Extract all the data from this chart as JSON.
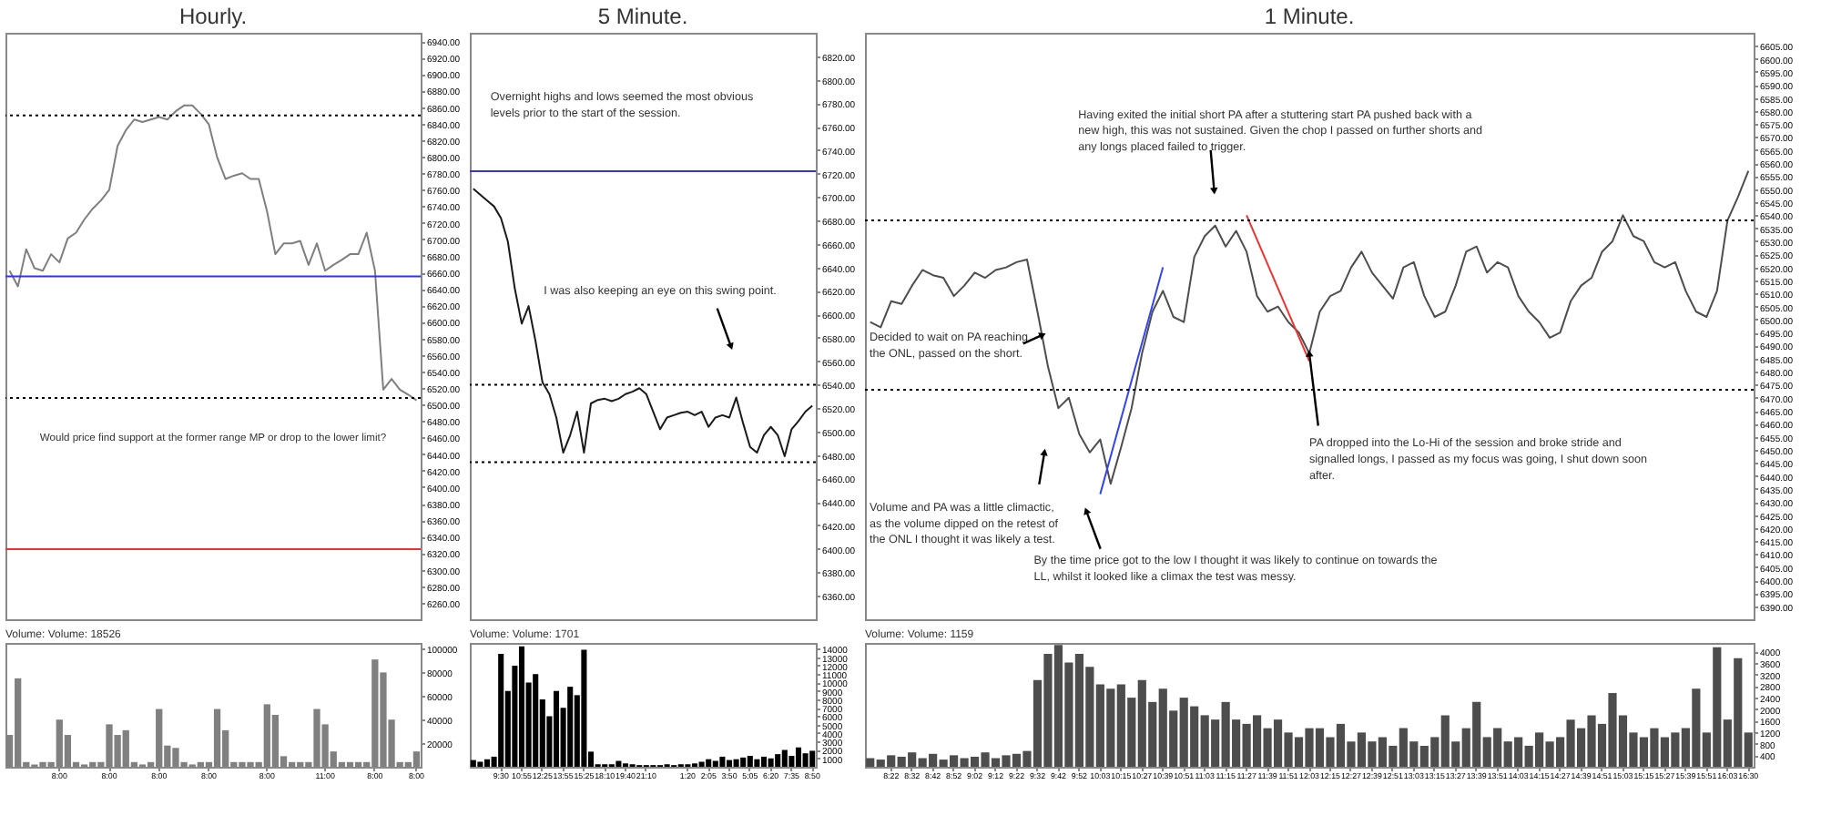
{
  "chart_data": [
    {
      "type": "line",
      "title": "Hourly.",
      "tick_labels": "y",
      "color": "#7f7f7f",
      "categories": [
        null,
        null,
        null,
        null,
        null,
        null,
        "8:00",
        null,
        null,
        null,
        null,
        null,
        "8:00",
        null,
        null,
        null,
        null,
        null,
        "8:00",
        null,
        null,
        null,
        null,
        null,
        "8:00",
        null,
        null,
        null,
        null,
        null,
        null,
        "8:00",
        null,
        null,
        null,
        null,
        null,
        null,
        "11:00",
        null,
        null,
        null,
        null,
        null,
        "8:00",
        null,
        null,
        null,
        null,
        "8:00"
      ],
      "values": [
        6662,
        6643,
        6688,
        6665,
        6662,
        6682,
        6672,
        6701,
        6708,
        6724,
        6737,
        6747,
        6760,
        6813,
        6832,
        6845,
        6842,
        6845,
        6848,
        6845,
        6855,
        6862,
        6862,
        6852,
        6839,
        6799,
        6773,
        6777,
        6780,
        6773,
        6773,
        6734,
        6682,
        6695,
        6695,
        6698,
        6669,
        6695,
        6662,
        6669,
        6675,
        6682,
        6682,
        6708,
        6662,
        6518,
        6531,
        6518,
        6512,
        6505
      ],
      "ylim": [
        6240,
        6950
      ],
      "yticks": [
        {
          "value": 6260,
          "label": "6260.00"
        },
        {
          "value": 6280,
          "label": "6280.00"
        },
        {
          "value": 6300,
          "label": "6300.00"
        },
        {
          "value": 6320,
          "label": "6320.00"
        },
        {
          "value": 6340,
          "label": "6340.00"
        },
        {
          "value": 6360,
          "label": "6360.00"
        },
        {
          "value": 6380,
          "label": "6380.00"
        },
        {
          "value": 6400,
          "label": "6400.00"
        },
        {
          "value": 6420,
          "label": "6420.00"
        },
        {
          "value": 6440,
          "label": "6440.00"
        },
        {
          "value": 6460,
          "label": "6460.00"
        },
        {
          "value": 6480,
          "label": "6480.00"
        },
        {
          "value": 6500,
          "label": "6500.00"
        },
        {
          "value": 6520,
          "label": "6520.00"
        },
        {
          "value": 6540,
          "label": "6540.00"
        },
        {
          "value": 6560,
          "label": "6560.00"
        },
        {
          "value": 6580,
          "label": "6580.00"
        },
        {
          "value": 6600,
          "label": "6600.00"
        },
        {
          "value": 6620,
          "label": "6620.00"
        },
        {
          "value": 6640,
          "label": "6640.00"
        },
        {
          "value": 6660,
          "label": "6660.00"
        },
        {
          "value": 6680,
          "label": "6680.00"
        },
        {
          "value": 6700,
          "label": "6700.00"
        },
        {
          "value": 6720,
          "label": "6720.00"
        },
        {
          "value": 6740,
          "label": "6740.00"
        },
        {
          "value": 6760,
          "label": "6760.00"
        },
        {
          "value": 6780,
          "label": "6780.00"
        },
        {
          "value": 6800,
          "label": "6800.00"
        },
        {
          "value": 6820,
          "label": "6820.00"
        },
        {
          "value": 6840,
          "label": "6840.00"
        },
        {
          "value": 6860,
          "label": "6860.00"
        },
        {
          "value": 6880,
          "label": "6880.00"
        },
        {
          "value": 6900,
          "label": "6900.00"
        },
        {
          "value": 6920,
          "label": "6920.00"
        },
        {
          "value": 6940,
          "label": "6940.00"
        }
      ],
      "ref_lines": [
        {
          "axis": "y",
          "value": 6850,
          "color": "#000000",
          "line_style": "dotted"
        },
        {
          "axis": "y",
          "value": 6655,
          "color": "#3333ee",
          "line_style": "solid"
        },
        {
          "axis": "y",
          "value": 6508,
          "color": "#000000",
          "line_style": "dotted"
        },
        {
          "axis": "y",
          "value": 6325,
          "color": "#ee3333",
          "line_style": "solid"
        }
      ],
      "annotations": [
        "Would price find support at the former range MP or drop to the lower limit?"
      ]
    },
    {
      "type": "bar",
      "title": "Volume: Volume: 18526",
      "color": "#808080",
      "categories": [
        null,
        null,
        null,
        null,
        null,
        null,
        "8:00",
        null,
        null,
        null,
        null,
        null,
        "8:00",
        null,
        null,
        null,
        null,
        null,
        "8:00",
        null,
        null,
        null,
        null,
        null,
        "8:00",
        null,
        null,
        null,
        null,
        null,
        null,
        "8:00",
        null,
        null,
        null,
        null,
        null,
        null,
        "11:00",
        null,
        null,
        null,
        null,
        null,
        "8:00",
        null,
        null,
        null,
        null,
        "8:00"
      ],
      "values": [
        27000,
        75000,
        4000,
        2000,
        4000,
        4000,
        40000,
        27000,
        4000,
        2000,
        4000,
        4000,
        36000,
        27000,
        31000,
        4000,
        2000,
        4000,
        49000,
        18000,
        16000,
        4000,
        2000,
        4000,
        4000,
        49000,
        31000,
        4000,
        4000,
        4000,
        4000,
        53000,
        44000,
        9000,
        4000,
        4000,
        4000,
        49000,
        36000,
        13000,
        4000,
        4000,
        4000,
        4000,
        91000,
        80000,
        40000,
        4000,
        4000,
        13000
      ],
      "ylim": [
        0,
        105000
      ],
      "yticks": [
        20000,
        40000,
        60000,
        80000,
        100000
      ]
    },
    {
      "type": "line",
      "title": "5 Minute.",
      "tick_labels": "y",
      "color": "#1a1a1a",
      "categories": [
        null,
        null,
        null,
        null,
        "9:30",
        null,
        null,
        "10:55",
        null,
        null,
        "12:25",
        null,
        null,
        "13:55",
        null,
        null,
        "15:25",
        null,
        null,
        "18:10",
        null,
        null,
        "19:40",
        null,
        null,
        "21:10",
        null,
        null,
        null,
        null,
        null,
        "1:20",
        null,
        null,
        "2:05",
        null,
        null,
        "3:50",
        null,
        null,
        "5:05",
        null,
        null,
        "6:20",
        null,
        null,
        "7:35",
        null,
        null,
        "8:50"
      ],
      "values": [
        6707,
        6702,
        6697,
        6692,
        6682,
        6662,
        6622,
        6592,
        6607,
        6577,
        6542,
        6532,
        6512,
        6482,
        6497,
        6517,
        6482,
        6524,
        6527,
        6528,
        6526,
        6528,
        6532,
        6534,
        6537,
        6532,
        6517,
        6502,
        6512,
        6514,
        6516,
        6517,
        6514,
        6517,
        6504,
        6512,
        6514,
        6512,
        6529,
        6507,
        6487,
        6482,
        6497,
        6504,
        6497,
        6479,
        6502,
        6509,
        6517,
        6522
      ],
      "ylim": [
        6340,
        6840
      ],
      "yticks": [
        {
          "value": 6360,
          "label": "6360.00"
        },
        {
          "value": 6380,
          "label": "6380.00"
        },
        {
          "value": 6400,
          "label": "6400.00"
        },
        {
          "value": 6420,
          "label": "6420.00"
        },
        {
          "value": 6440,
          "label": "6440.00"
        },
        {
          "value": 6460,
          "label": "6460.00"
        },
        {
          "value": 6480,
          "label": "6480.00"
        },
        {
          "value": 6500,
          "label": "6500.00"
        },
        {
          "value": 6520,
          "label": "6520.00"
        },
        {
          "value": 6540,
          "label": "6540.00"
        },
        {
          "value": 6560,
          "label": "6560.00"
        },
        {
          "value": 6580,
          "label": "6580.00"
        },
        {
          "value": 6600,
          "label": "6600.00"
        },
        {
          "value": 6620,
          "label": "6620.00"
        },
        {
          "value": 6640,
          "label": "6640.00"
        },
        {
          "value": 6660,
          "label": "6660.00"
        },
        {
          "value": 6680,
          "label": "6680.00"
        },
        {
          "value": 6700,
          "label": "6700.00"
        },
        {
          "value": 6720,
          "label": "6720.00"
        },
        {
          "value": 6740,
          "label": "6740.00"
        },
        {
          "value": 6760,
          "label": "6760.00"
        },
        {
          "value": 6780,
          "label": "6780.00"
        },
        {
          "value": 6800,
          "label": "6800.00"
        },
        {
          "value": 6820,
          "label": "6820.00"
        }
      ],
      "ref_lines": [
        {
          "axis": "y",
          "value": 6722,
          "color": "#3333ee",
          "line_style": "solid"
        },
        {
          "axis": "y",
          "value": 6540,
          "color": "#000000",
          "line_style": "dotted"
        },
        {
          "axis": "y",
          "value": 6474,
          "color": "#000000",
          "line_style": "dotted"
        }
      ],
      "annotations": [
        "Overnight highs and lows seemed the most obvious levels prior to the start of the session.",
        "I was also keeping an eye on this swing point."
      ]
    },
    {
      "type": "bar",
      "title": "Volume: Volume: 1701",
      "color": "#000000",
      "categories": [
        null,
        null,
        null,
        null,
        "9:30",
        null,
        null,
        "10:55",
        null,
        null,
        "12:25",
        null,
        null,
        "13:55",
        null,
        null,
        "15:25",
        null,
        null,
        "18:10",
        null,
        null,
        "19:40",
        null,
        null,
        "21:10",
        null,
        null,
        null,
        null,
        null,
        "1:20",
        null,
        null,
        "2:05",
        null,
        null,
        "3:50",
        null,
        null,
        "5:05",
        null,
        null,
        "6:20",
        null,
        null,
        "7:35",
        null,
        null,
        "8:50"
      ],
      "values": [
        800,
        600,
        900,
        1200,
        13400,
        9000,
        12000,
        14300,
        10000,
        11000,
        8000,
        6000,
        9000,
        7000,
        9500,
        8500,
        13900,
        1800,
        300,
        300,
        300,
        700,
        400,
        300,
        200,
        200,
        200,
        200,
        300,
        200,
        300,
        300,
        400,
        600,
        900,
        700,
        1200,
        800,
        900,
        1100,
        1300,
        900,
        1200,
        1000,
        1500,
        2000,
        1300,
        2300,
        1600,
        1900
      ],
      "ylim": [
        0,
        14700
      ],
      "yticks": [
        1000,
        2000,
        3000,
        4000,
        5000,
        6000,
        7000,
        8000,
        9000,
        10000,
        11000,
        12000,
        13000,
        14000
      ]
    },
    {
      "type": "line",
      "title": "1 Minute.",
      "tick_labels": "y",
      "categories": [
        null,
        null,
        "8:22",
        null,
        "8:32",
        null,
        "8:42",
        null,
        "8:52",
        null,
        "9:02",
        null,
        "9:12",
        null,
        "9:22",
        null,
        "9:32",
        null,
        "9:42",
        null,
        "9:52",
        null,
        "10:03",
        null,
        "10:15",
        null,
        "10:27",
        null,
        "10:39",
        null,
        "10:51",
        null,
        "11:03",
        null,
        "11:15",
        null,
        "11:27",
        null,
        "11:39",
        null,
        "11:51",
        null,
        "12:03",
        null,
        "12:15",
        null,
        "12:27",
        null,
        "12:39",
        null,
        "12:51",
        null,
        "13:03",
        null,
        "13:15",
        null,
        "13:27",
        null,
        "13:39",
        null,
        "13:51",
        null,
        "14:03",
        null,
        "14:15",
        null,
        "14:27",
        null,
        "14:39",
        null,
        "14:51",
        null,
        "15:03",
        null,
        "15:15",
        null,
        "15:27",
        null,
        "15:39",
        null,
        "15:51",
        null,
        "16:03",
        null,
        "16:30"
      ],
      "series": [
        {
          "color": "#4d4d4d",
          "values": [
            6499,
            6497,
            6507,
            6506,
            6513,
            6519,
            6517,
            6516,
            6509,
            6513,
            6518,
            6516,
            6519,
            6520,
            6522,
            6523,
            6503,
            6482,
            6466,
            6470,
            6456,
            6449,
            6454,
            6437,
            6451,
            6466,
            6487,
            6503,
            6511,
            6501,
            6499,
            6524,
            6532,
            6536,
            6528,
            6534,
            6526,
            6509,
            6503,
            6505,
            6499,
            6495,
            6487,
            6503,
            6509,
            6511,
            6520,
            6526,
            6518,
            6513,
            6508,
            6520,
            6522,
            6509,
            6501,
            6503,
            6513,
            6526,
            6528,
            6518,
            6522,
            6520,
            6509,
            6503,
            6499,
            6493,
            6495,
            6507,
            6513,
            6516,
            6526,
            6530,
            6540,
            6532,
            6530,
            6522,
            6520,
            6522,
            6511,
            6503,
            6501,
            6511,
            6538,
            6547,
            6557
          ]
        },
        {
          "type": "line",
          "color": "#3344ee",
          "x": [
            "10:03",
            "10:39"
          ],
          "values": [
            6433,
            6520
          ]
        },
        {
          "type": "line",
          "color": "#ee3333",
          "x": [
            "11:27",
            "12:03"
          ],
          "values": [
            6540,
            6484
          ]
        }
      ],
      "ylim": [
        6385,
        6610
      ],
      "yticks": [
        {
          "value": 6390,
          "label": "6390.00"
        },
        {
          "value": 6395,
          "label": "6395.00"
        },
        {
          "value": 6400,
          "label": "6400.00"
        },
        {
          "value": 6405,
          "label": "6405.00"
        },
        {
          "value": 6410,
          "label": "6410.00"
        },
        {
          "value": 6415,
          "label": "6415.00"
        },
        {
          "value": 6420,
          "label": "6420.00"
        },
        {
          "value": 6425,
          "label": "6425.00"
        },
        {
          "value": 6430,
          "label": "6430.00"
        },
        {
          "value": 6435,
          "label": "6435.00"
        },
        {
          "value": 6440,
          "label": "6440.00"
        },
        {
          "value": 6445,
          "label": "6445.00"
        },
        {
          "value": 6450,
          "label": "6450.00"
        },
        {
          "value": 6455,
          "label": "6455.00"
        },
        {
          "value": 6460,
          "label": "6460.00"
        },
        {
          "value": 6465,
          "label": "6465.00"
        },
        {
          "value": 6470,
          "label": "6470.00"
        },
        {
          "value": 6475,
          "label": "6475.00"
        },
        {
          "value": 6480,
          "label": "6480.00"
        },
        {
          "value": 6485,
          "label": "6485.00"
        },
        {
          "value": 6490,
          "label": "6490.00"
        },
        {
          "value": 6495,
          "label": "6495.00"
        },
        {
          "value": 6500,
          "label": "6500.00"
        },
        {
          "value": 6505,
          "label": "6505.00"
        },
        {
          "value": 6510,
          "label": "6510.00"
        },
        {
          "value": 6515,
          "label": "6515.00"
        },
        {
          "value": 6520,
          "label": "6520.00"
        },
        {
          "value": 6525,
          "label": "6525.00"
        },
        {
          "value": 6530,
          "label": "6530.00"
        },
        {
          "value": 6535,
          "label": "6535.00"
        },
        {
          "value": 6540,
          "label": "6540.00"
        },
        {
          "value": 6545,
          "label": "6545.00"
        },
        {
          "value": 6550,
          "label": "6550.00"
        },
        {
          "value": 6555,
          "label": "6555.00"
        },
        {
          "value": 6560,
          "label": "6560.00"
        },
        {
          "value": 6565,
          "label": "6565.00"
        },
        {
          "value": 6570,
          "label": "6570.00"
        },
        {
          "value": 6575,
          "label": "6575.00"
        },
        {
          "value": 6580,
          "label": "6580.00"
        },
        {
          "value": 6585,
          "label": "6585.00"
        },
        {
          "value": 6590,
          "label": "6590.00"
        },
        {
          "value": 6595,
          "label": "6595.00"
        },
        {
          "value": 6600,
          "label": "6600.00"
        },
        {
          "value": 6605,
          "label": "6605.00"
        }
      ],
      "ref_lines": [
        {
          "axis": "y",
          "value": 6538,
          "color": "#000000",
          "line_style": "dotted"
        },
        {
          "axis": "y",
          "value": 6473,
          "color": "#000000",
          "line_style": "dotted"
        }
      ],
      "annotations": [
        "Having exited the initial short PA after a stuttering start PA pushed back with a new high, this was not sustained.  Given the chop I passed on further shorts and any longs placed failed to trigger.",
        "Decided to wait on PA reaching the ONL, passed on the short.",
        "Volume and PA was a little climactic, as the volume dipped on the retest of the ONL I thought it was likely a test.",
        "By the time price got to the low I thought it was likely to continue on towards the LL, whilst it looked like a climax the test was messy.",
        {
          "text": "PA dropped into the Lo-Hi of the session and broke stride and signalled longs, I passed as my focus was going, I shut down soon after.",
          "x": "12:03",
          "y": 6487
        }
      ]
    },
    {
      "type": "bar",
      "title": "Volume: Volume: 1159",
      "color": "#4d4d4d",
      "categories": [
        null,
        null,
        "8:22",
        null,
        "8:32",
        null,
        "8:42",
        null,
        "8:52",
        null,
        "9:02",
        null,
        "9:12",
        null,
        "9:22",
        null,
        "9:32",
        null,
        "9:42",
        null,
        "9:52",
        null,
        "10:03",
        null,
        "10:15",
        null,
        "10:27",
        null,
        "10:39",
        null,
        "10:51",
        null,
        "11:03",
        null,
        "11:15",
        null,
        "11:27",
        null,
        "11:39",
        null,
        "11:51",
        null,
        "12:03",
        null,
        "12:15",
        null,
        "12:27",
        null,
        "12:39",
        null,
        "12:51",
        null,
        "13:03",
        null,
        "13:15",
        null,
        "13:27",
        null,
        "13:39",
        null,
        "13:51",
        null,
        "14:03",
        null,
        "14:15",
        null,
        "14:27",
        null,
        "14:39",
        null,
        "14:51",
        null,
        "15:03",
        null,
        "15:15",
        null,
        "15:27",
        null,
        "15:39",
        null,
        "15:51",
        null,
        "16:03",
        null,
        "16:30"
      ],
      "values": [
        300,
        250,
        400,
        350,
        500,
        300,
        450,
        250,
        400,
        300,
        350,
        500,
        300,
        400,
        450,
        550,
        3010,
        3920,
        4230,
        3620,
        3920,
        3470,
        2860,
        2710,
        2860,
        2400,
        3010,
        2250,
        2710,
        1950,
        2400,
        2100,
        1790,
        1640,
        2250,
        1640,
        1490,
        1790,
        1340,
        1640,
        1190,
        1030,
        1340,
        1340,
        1030,
        1490,
        880,
        1190,
        880,
        1030,
        730,
        1340,
        880,
        730,
        1030,
        1790,
        880,
        1340,
        2250,
        1030,
        1340,
        880,
        1030,
        730,
        1190,
        880,
        1030,
        1640,
        1340,
        1790,
        1490,
        2560,
        1790,
        1190,
        1030,
        1340,
        1030,
        1190,
        1340,
        2710,
        1190,
        4150,
        1640,
        3770,
        1190
      ],
      "ylim": [
        0,
        4300
      ],
      "yticks": [
        400,
        800,
        1200,
        1600,
        2000,
        2400,
        2800,
        3200,
        3600,
        4000
      ]
    }
  ]
}
